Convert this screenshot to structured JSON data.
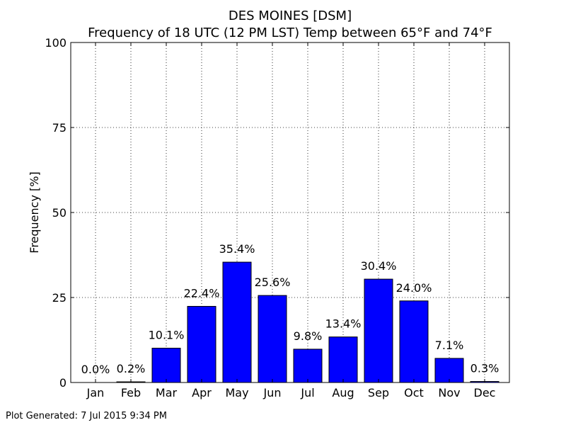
{
  "chart_data": {
    "type": "bar",
    "title": "DES MOINES [DSM]",
    "subtitle": "Frequency of 18 UTC (12 PM LST) Temp between 65°F and 74°F",
    "ylabel": "Frequency [%]",
    "xlabel": "",
    "categories": [
      "Jan",
      "Feb",
      "Mar",
      "Apr",
      "May",
      "Jun",
      "Jul",
      "Aug",
      "Sep",
      "Oct",
      "Nov",
      "Dec"
    ],
    "values": [
      0.0,
      0.2,
      10.1,
      22.4,
      35.4,
      25.6,
      9.8,
      13.4,
      30.4,
      24.0,
      7.1,
      0.3
    ],
    "data_labels": [
      "0.0%",
      "0.2%",
      "10.1%",
      "22.4%",
      "35.4%",
      "25.6%",
      "9.8%",
      "13.4%",
      "30.4%",
      "24.0%",
      "7.1%",
      "0.3%"
    ],
    "yticks": [
      0,
      25,
      50,
      75,
      100
    ],
    "ytick_labels": [
      "0",
      "25",
      "50",
      "75",
      "100"
    ],
    "ylim": [
      0,
      100
    ],
    "grid": true,
    "bar_color": "#0000ff"
  },
  "footer": {
    "generated": "Plot Generated: 7 Jul 2015 9:34 PM"
  }
}
